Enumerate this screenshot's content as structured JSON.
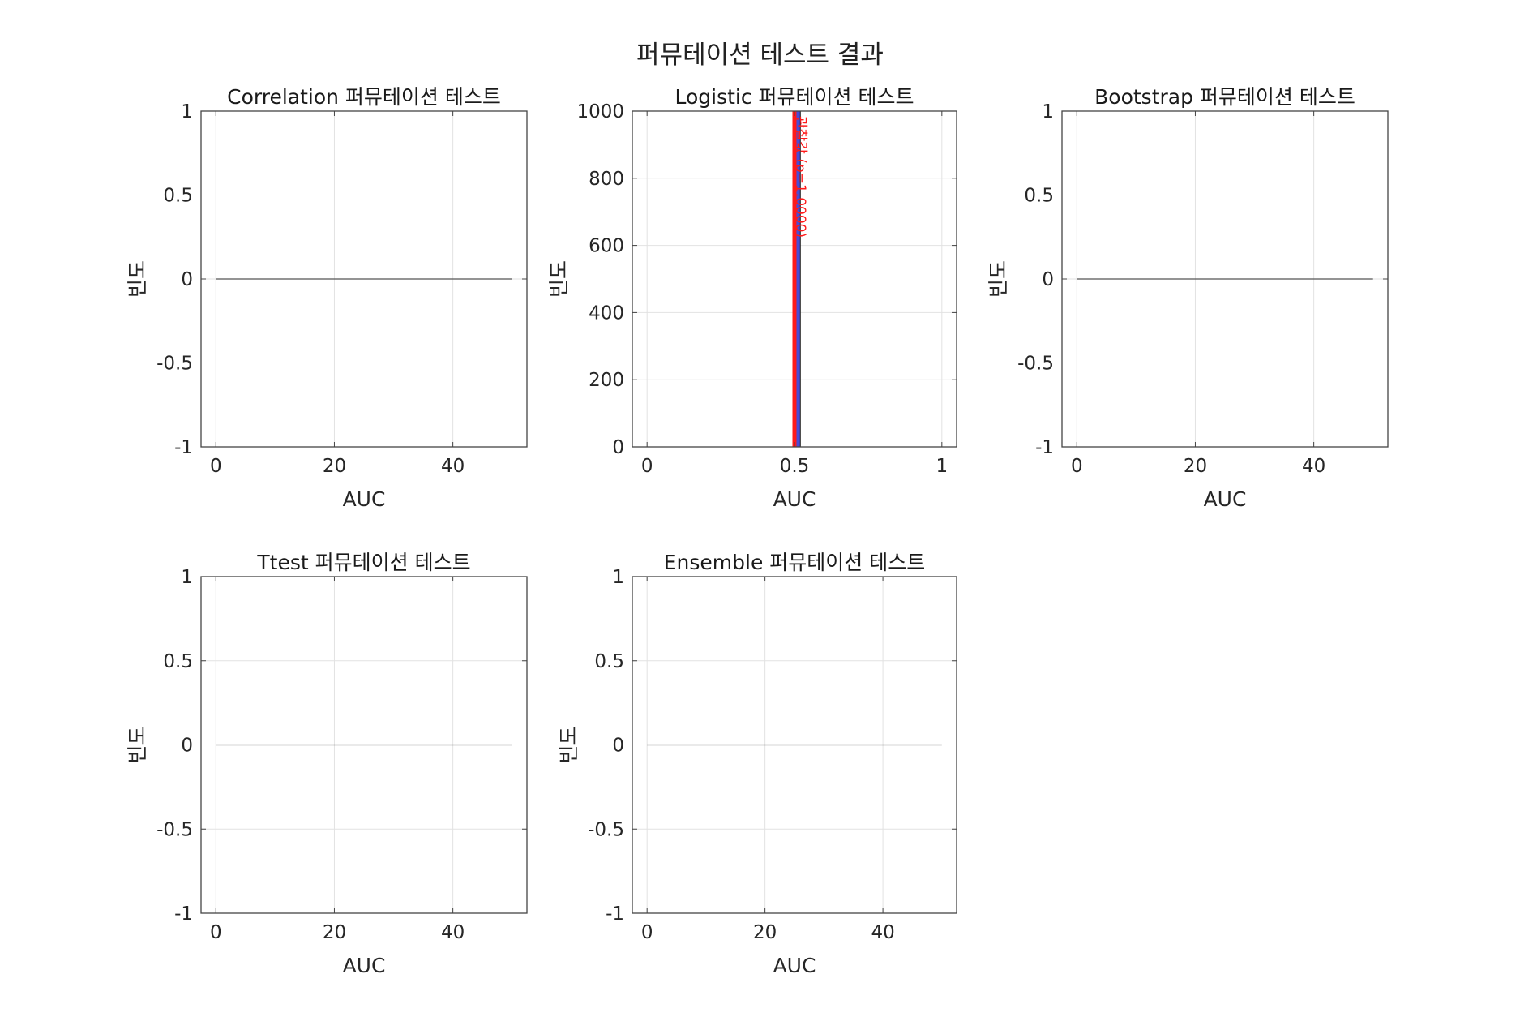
{
  "figure_title": "퍼뮤테이션 테스트 결과",
  "chart_data": [
    {
      "type": "bar",
      "title": "Correlation 퍼뮤테이션 테스트",
      "xlabel": "AUC",
      "ylabel": "빈도",
      "xlim": [
        -2.5,
        52.5
      ],
      "ylim": [
        -1,
        1
      ],
      "xticks": [
        0,
        20,
        40
      ],
      "xtick_labels": [
        "0",
        "20",
        "40"
      ],
      "yticks": [
        -1,
        -0.5,
        0,
        0.5,
        1
      ],
      "ytick_labels": [
        "-1",
        "-0.5",
        "0",
        "0.5",
        "1"
      ],
      "grid": true,
      "baseline": {
        "x_start": 0,
        "x_end": 50,
        "y": 0
      },
      "series": []
    },
    {
      "type": "bar",
      "title": "Logistic 퍼뮤테이션 테스트",
      "xlabel": "AUC",
      "ylabel": "빈도",
      "xlim": [
        -0.05,
        1.05
      ],
      "ylim": [
        0,
        1000
      ],
      "xticks": [
        0,
        0.5,
        1
      ],
      "xtick_labels": [
        "0",
        "0.5",
        "1"
      ],
      "yticks": [
        0,
        200,
        400,
        600,
        800,
        1000
      ],
      "ytick_labels": [
        "0",
        "200",
        "400",
        "600",
        "800",
        "1000"
      ],
      "grid": true,
      "bars": [
        {
          "x_start": 0.5,
          "x_end": 0.52,
          "value": 1000,
          "color": "#4b4bd6"
        }
      ],
      "observed": {
        "x": 0.5,
        "color": "#ff1a1a",
        "label": "관찰값 (p=1.0000)"
      }
    },
    {
      "type": "bar",
      "title": "Bootstrap 퍼뮤테이션 테스트",
      "xlabel": "AUC",
      "ylabel": "빈도",
      "xlim": [
        -2.5,
        52.5
      ],
      "ylim": [
        -1,
        1
      ],
      "xticks": [
        0,
        20,
        40
      ],
      "xtick_labels": [
        "0",
        "20",
        "40"
      ],
      "yticks": [
        -1,
        -0.5,
        0,
        0.5,
        1
      ],
      "ytick_labels": [
        "-1",
        "-0.5",
        "0",
        "0.5",
        "1"
      ],
      "grid": true,
      "baseline": {
        "x_start": 0,
        "x_end": 50,
        "y": 0
      },
      "series": []
    },
    {
      "type": "bar",
      "title": "Ttest 퍼뮤테이션 테스트",
      "xlabel": "AUC",
      "ylabel": "빈도",
      "xlim": [
        -2.5,
        52.5
      ],
      "ylim": [
        -1,
        1
      ],
      "xticks": [
        0,
        20,
        40
      ],
      "xtick_labels": [
        "0",
        "20",
        "40"
      ],
      "yticks": [
        -1,
        -0.5,
        0,
        0.5,
        1
      ],
      "ytick_labels": [
        "-1",
        "-0.5",
        "0",
        "0.5",
        "1"
      ],
      "grid": true,
      "baseline": {
        "x_start": 0,
        "x_end": 50,
        "y": 0
      },
      "series": []
    },
    {
      "type": "bar",
      "title": "Ensemble 퍼뮤테이션 테스트",
      "xlabel": "AUC",
      "ylabel": "빈도",
      "xlim": [
        -2.5,
        52.5
      ],
      "ylim": [
        -1,
        1
      ],
      "xticks": [
        0,
        20,
        40
      ],
      "xtick_labels": [
        "0",
        "20",
        "40"
      ],
      "yticks": [
        -1,
        -0.5,
        0,
        0.5,
        1
      ],
      "ytick_labels": [
        "-1",
        "-0.5",
        "0",
        "0.5",
        "1"
      ],
      "grid": true,
      "baseline": {
        "x_start": 0,
        "x_end": 50,
        "y": 0
      },
      "series": []
    }
  ]
}
